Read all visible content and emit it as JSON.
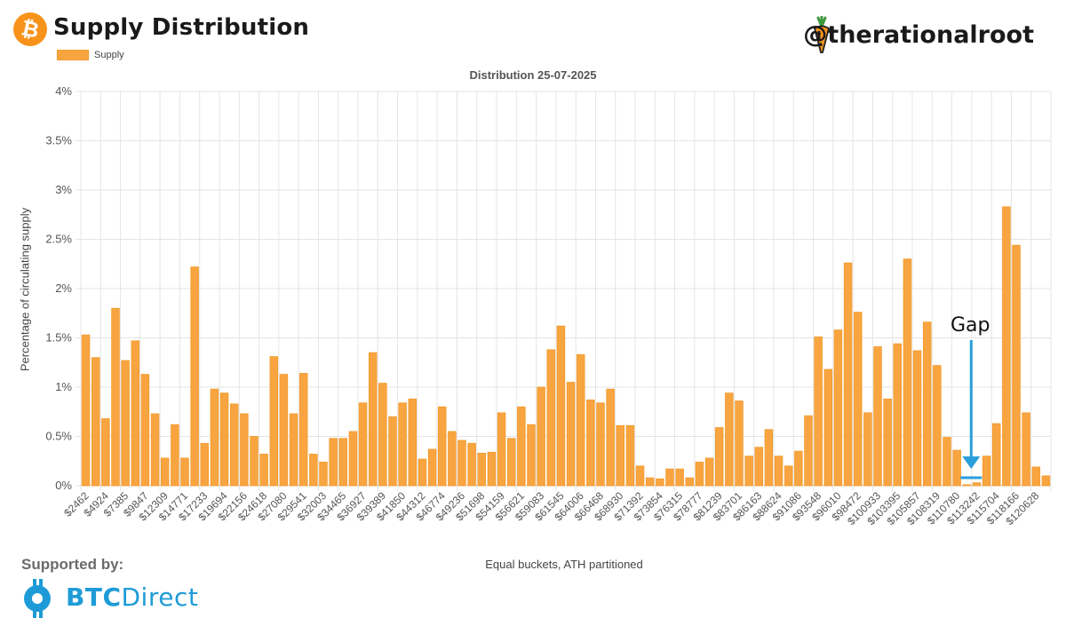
{
  "header": {
    "title": "Supply Distribution",
    "handle": "@therationalroot",
    "supported_by": "Supported by:",
    "sponsor_name_bold": "BTC",
    "sponsor_name_rest": "Direct"
  },
  "annotation": {
    "gap_label": "Gap"
  },
  "colors": {
    "bar": "#f8a541",
    "bar_border": "#f39a2b",
    "grid": "#e4e4e4",
    "arrow": "#2a9fdc",
    "btc_orange": "#f7931a",
    "sponsor_blue": "#1e9bd7"
  },
  "chart_data": {
    "type": "bar",
    "title": "Distribution 25-07-2025",
    "xlabel": "Equal buckets, ATH partitioned",
    "ylabel": "Percentage of circulating supply",
    "legend": [
      "Supply"
    ],
    "legend_position": "top-left",
    "grid": true,
    "ylim": [
      0,
      4
    ],
    "yticks": [
      "0%",
      "0.5%",
      "1%",
      "1.5%",
      "2%",
      "2.5%",
      "3%",
      "3.5%",
      "4%"
    ],
    "tick_labels": [
      "$2462",
      "$4924",
      "$7385",
      "$9847",
      "$12309",
      "$14771",
      "$17233",
      "$19694",
      "$22156",
      "$24618",
      "$27080",
      "$29541",
      "$32003",
      "$34465",
      "$36927",
      "$39389",
      "$41850",
      "$44312",
      "$46774",
      "$49236",
      "$51698",
      "$54159",
      "$56621",
      "$59083",
      "$61545",
      "$64006",
      "$66468",
      "$68930",
      "$71392",
      "$73854",
      "$76315",
      "$78777",
      "$81239",
      "$83701",
      "$86163",
      "$88624",
      "$91086",
      "$93548",
      "$96010",
      "$98472",
      "$100933",
      "$103395",
      "$105857",
      "$108319",
      "$110780",
      "$113242",
      "$115704",
      "$118166",
      "$120628"
    ],
    "series": [
      {
        "name": "Supply",
        "values": [
          1.53,
          1.3,
          0.68,
          1.8,
          1.27,
          1.47,
          1.13,
          0.73,
          0.28,
          0.62,
          0.28,
          2.22,
          0.43,
          0.98,
          0.94,
          0.83,
          0.73,
          0.5,
          0.32,
          1.31,
          1.13,
          0.73,
          1.14,
          0.32,
          0.24,
          0.48,
          0.48,
          0.55,
          0.84,
          1.35,
          1.04,
          0.7,
          0.84,
          0.88,
          0.27,
          0.37,
          0.8,
          0.55,
          0.46,
          0.43,
          0.33,
          0.34,
          0.74,
          0.48,
          0.8,
          0.62,
          1.0,
          1.38,
          1.62,
          1.05,
          1.33,
          0.87,
          0.84,
          0.98,
          0.61,
          0.61,
          0.2,
          0.08,
          0.07,
          0.17,
          0.17,
          0.08,
          0.24,
          0.28,
          0.59,
          0.94,
          0.86,
          0.3,
          0.39,
          0.57,
          0.3,
          0.2,
          0.35,
          0.71,
          1.51,
          1.18,
          1.58,
          2.26,
          1.76,
          0.74,
          1.41,
          0.88,
          1.44,
          2.3,
          1.37,
          1.66,
          1.22,
          0.49,
          0.36,
          0.01,
          0.03,
          0.3,
          0.63,
          2.83,
          2.44,
          0.74,
          0.19,
          0.1
        ]
      }
    ]
  }
}
